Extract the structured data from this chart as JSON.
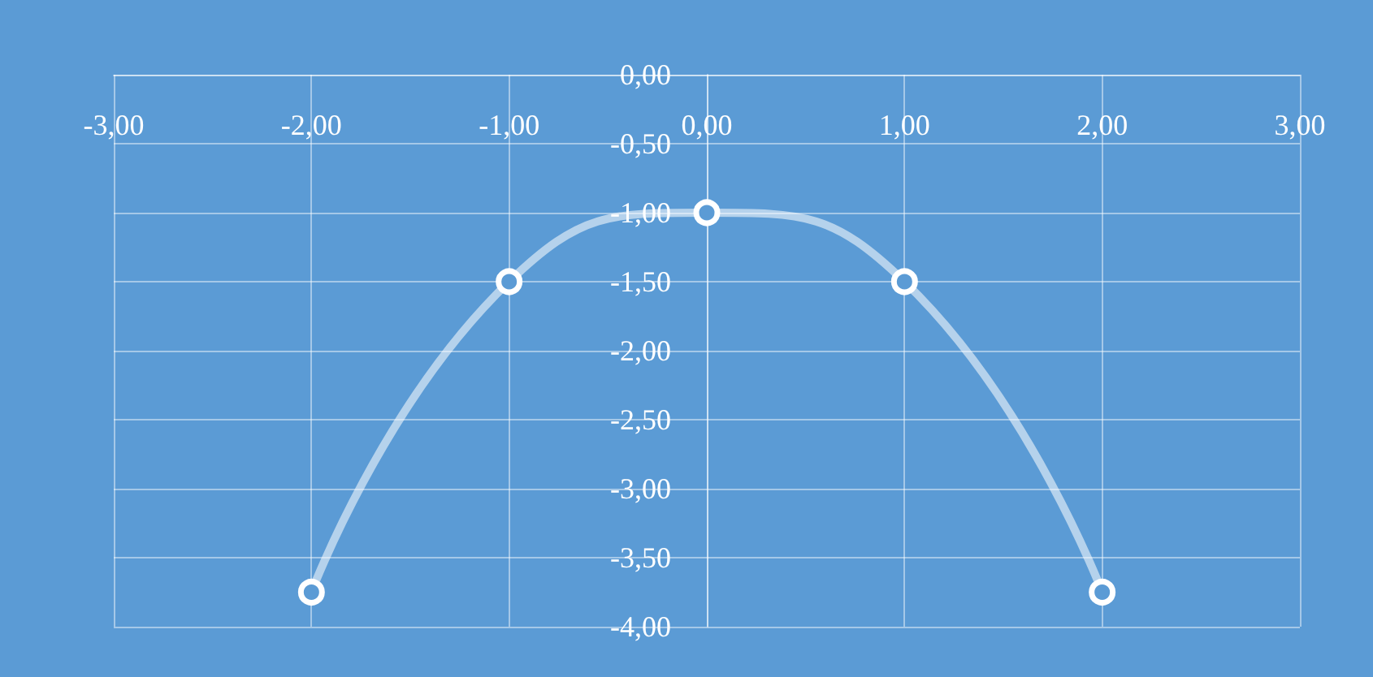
{
  "chart_data": {
    "type": "line",
    "x": [
      -2,
      -1,
      0,
      1,
      2
    ],
    "series": [
      {
        "color": "#ffffff",
        "values": [
          -3.75,
          -1.5,
          -1,
          -1.5,
          -3.75
        ]
      }
    ],
    "xlim": [
      -3,
      3
    ],
    "xticks": [
      {
        "value": -3,
        "label": "-3,00"
      },
      {
        "value": -2,
        "label": "-2,00"
      },
      {
        "value": -1,
        "label": "-1,00"
      },
      {
        "value": 0,
        "label": "0,00"
      },
      {
        "value": 1,
        "label": "1,00"
      },
      {
        "value": 2,
        "label": "2,00"
      },
      {
        "value": 3,
        "label": "3,00"
      }
    ],
    "ylim": [
      -4,
      0
    ],
    "yticks": [
      {
        "value": -4,
        "label": "-4,00"
      },
      {
        "value": -3.5,
        "label": "-3,50"
      },
      {
        "value": -3,
        "label": "-3,00"
      },
      {
        "value": -2.5,
        "label": "-2,50"
      },
      {
        "value": -2,
        "label": "-2,00"
      },
      {
        "value": -1.5,
        "label": "-1,50"
      },
      {
        "value": -1,
        "label": "-1,00"
      },
      {
        "value": -0.5,
        "label": "-0,50"
      },
      {
        "value": 0,
        "label": "0,00"
      }
    ],
    "grid": true,
    "marker": "circle",
    "line_style": "solid"
  }
}
